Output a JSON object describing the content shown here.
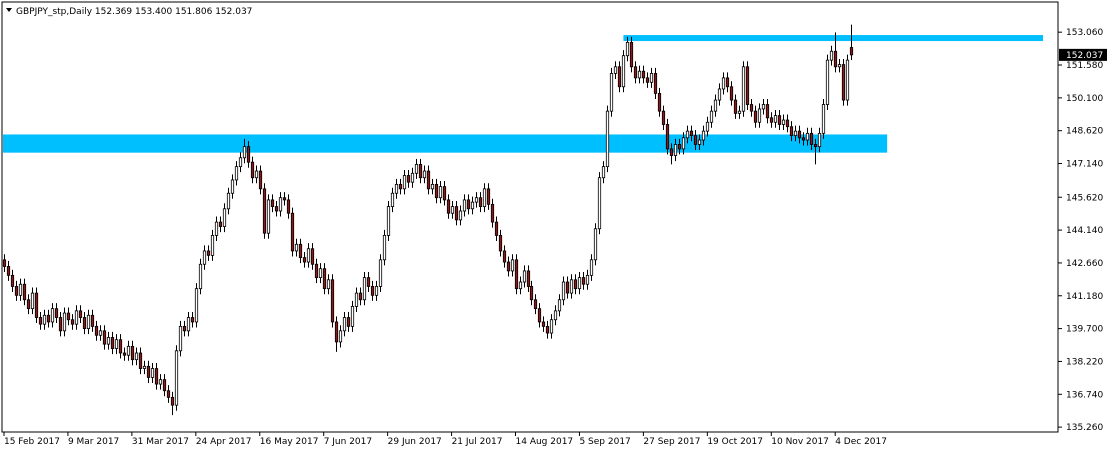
{
  "chart_data": {
    "type": "candlestick",
    "title": "GBPJPY_stp,Daily",
    "ohlc_labels": [
      "152.369",
      "153.400",
      "151.806",
      "152.037"
    ],
    "bull_color": "#ffffff",
    "bear_color": "#8b1a1a",
    "outline_color": "#000000",
    "zone_color": "#00bfff",
    "ylim": [
      135.04,
      154.42
    ],
    "xlim": [
      -0.5,
      263.75
    ],
    "yticks": [
      {
        "value": 153.06,
        "label": "153.060"
      },
      {
        "value": 151.58,
        "label": "151.580"
      },
      {
        "value": 150.1,
        "label": "150.100"
      },
      {
        "value": 148.62,
        "label": "148.620"
      },
      {
        "value": 147.14,
        "label": "147.140"
      },
      {
        "value": 145.62,
        "label": "145.620"
      },
      {
        "value": 144.14,
        "label": "144.140"
      },
      {
        "value": 142.66,
        "label": "142.660"
      },
      {
        "value": 141.18,
        "label": "141.180"
      },
      {
        "value": 139.7,
        "label": "139.700"
      },
      {
        "value": 138.22,
        "label": "138.220"
      },
      {
        "value": 136.74,
        "label": "136.740"
      },
      {
        "value": 135.26,
        "label": "135.260"
      }
    ],
    "xticks": [
      {
        "value": 0,
        "label": "15 Feb 2017"
      },
      {
        "value": 16,
        "label": "9 Mar 2017"
      },
      {
        "value": 32,
        "label": "31 Mar 2017"
      },
      {
        "value": 48,
        "label": "24 Apr 2017"
      },
      {
        "value": 64,
        "label": "16 May 2017"
      },
      {
        "value": 80,
        "label": "7 Jun 2017"
      },
      {
        "value": 96,
        "label": "29 Jun 2017"
      },
      {
        "value": 112,
        "label": "21 Jul 2017"
      },
      {
        "value": 128,
        "label": "14 Aug 2017"
      },
      {
        "value": 144,
        "label": "5 Sep 2017"
      },
      {
        "value": 160,
        "label": "27 Sep 2017"
      },
      {
        "value": 176,
        "label": "19 Oct 2017"
      },
      {
        "value": 192,
        "label": "10 Nov 2017"
      },
      {
        "value": 208,
        "label": "4 Dec 2017"
      }
    ],
    "zones": [
      {
        "from": -0.25,
        "to": 221,
        "top": 148.45,
        "bottom": 147.63
      },
      {
        "from": 155,
        "to": 260,
        "top": 152.93,
        "bottom": 152.66
      }
    ],
    "ohlc": [
      [
        142.8,
        143.05,
        142.25,
        142.5
      ],
      [
        142.5,
        142.75,
        141.85,
        142.1
      ],
      [
        142.1,
        142.35,
        141.35,
        141.6
      ],
      [
        141.6,
        141.85,
        140.95,
        141.2
      ],
      [
        141.2,
        141.95,
        140.95,
        141.7
      ],
      [
        141.7,
        141.95,
        140.75,
        141.0
      ],
      [
        141.0,
        141.25,
        140.35,
        140.6
      ],
      [
        140.6,
        141.55,
        140.35,
        141.3
      ],
      [
        141.3,
        141.55,
        139.95,
        140.2
      ],
      [
        140.2,
        140.45,
        139.65,
        139.9
      ],
      [
        139.9,
        140.55,
        139.65,
        140.3
      ],
      [
        140.3,
        140.55,
        139.75,
        140.0
      ],
      [
        140.0,
        140.85,
        139.75,
        140.6
      ],
      [
        140.6,
        140.85,
        139.95,
        140.2
      ],
      [
        140.2,
        140.45,
        139.35,
        139.6
      ],
      [
        139.6,
        140.65,
        139.35,
        140.4
      ],
      [
        140.4,
        140.65,
        139.85,
        140.1
      ],
      [
        140.1,
        140.35,
        139.65,
        139.9
      ],
      [
        139.9,
        140.75,
        139.65,
        140.5
      ],
      [
        140.5,
        140.75,
        139.95,
        140.2
      ],
      [
        140.2,
        140.45,
        139.45,
        139.7
      ],
      [
        139.7,
        140.55,
        139.45,
        140.3
      ],
      [
        140.3,
        140.55,
        139.55,
        139.8
      ],
      [
        139.8,
        140.05,
        139.15,
        139.4
      ],
      [
        139.4,
        139.85,
        139.15,
        139.6
      ],
      [
        139.6,
        139.85,
        138.75,
        139.0
      ],
      [
        139.0,
        139.55,
        138.75,
        139.3
      ],
      [
        139.3,
        139.55,
        138.55,
        138.8
      ],
      [
        138.8,
        139.45,
        138.55,
        139.2
      ],
      [
        139.2,
        139.45,
        138.35,
        138.6
      ],
      [
        138.6,
        138.85,
        138.25,
        138.5
      ],
      [
        138.5,
        139.15,
        138.25,
        138.9
      ],
      [
        138.9,
        139.15,
        138.05,
        138.3
      ],
      [
        138.3,
        138.85,
        138.05,
        138.6
      ],
      [
        138.6,
        138.85,
        137.65,
        137.9
      ],
      [
        137.9,
        138.25,
        137.65,
        138.0
      ],
      [
        138.0,
        138.25,
        137.25,
        137.5
      ],
      [
        137.5,
        138.15,
        137.25,
        137.9
      ],
      [
        137.9,
        138.15,
        136.95,
        137.2
      ],
      [
        137.2,
        137.65,
        136.95,
        137.4
      ],
      [
        137.4,
        137.65,
        136.65,
        136.9
      ],
      [
        136.9,
        137.15,
        136.35,
        136.6
      ],
      [
        136.6,
        136.85,
        135.8,
        136.25
      ],
      [
        136.25,
        138.95,
        136.0,
        138.7
      ],
      [
        138.7,
        140.05,
        138.45,
        139.8
      ],
      [
        139.8,
        140.05,
        139.35,
        139.6
      ],
      [
        139.6,
        140.45,
        139.35,
        140.2
      ],
      [
        140.2,
        140.45,
        139.75,
        140.0
      ],
      [
        140.0,
        141.75,
        139.75,
        141.5
      ],
      [
        141.5,
        142.85,
        141.25,
        142.6
      ],
      [
        142.6,
        143.45,
        142.35,
        143.2
      ],
      [
        143.2,
        143.45,
        142.75,
        143.0
      ],
      [
        143.0,
        144.15,
        142.75,
        143.9
      ],
      [
        143.9,
        144.75,
        143.65,
        144.5
      ],
      [
        144.5,
        144.75,
        144.05,
        144.3
      ],
      [
        144.3,
        145.35,
        144.05,
        145.1
      ],
      [
        145.1,
        146.05,
        144.85,
        145.8
      ],
      [
        145.8,
        146.65,
        145.55,
        146.4
      ],
      [
        146.4,
        147.25,
        146.15,
        147.0
      ],
      [
        147.0,
        147.65,
        146.75,
        147.4
      ],
      [
        147.4,
        148.25,
        147.15,
        147.9
      ],
      [
        147.9,
        148.15,
        146.95,
        147.2
      ],
      [
        147.2,
        147.45,
        146.25,
        146.5
      ],
      [
        146.5,
        147.05,
        146.25,
        146.8
      ],
      [
        146.8,
        147.05,
        145.75,
        146.0
      ],
      [
        146.0,
        146.25,
        143.75,
        144.0
      ],
      [
        144.0,
        145.75,
        143.75,
        145.5
      ],
      [
        145.5,
        145.75,
        144.95,
        145.2
      ],
      [
        145.2,
        145.45,
        144.75,
        145.0
      ],
      [
        145.0,
        145.85,
        144.75,
        145.6
      ],
      [
        145.6,
        145.85,
        145.25,
        145.5
      ],
      [
        145.5,
        145.75,
        144.65,
        144.9
      ],
      [
        144.9,
        145.15,
        142.95,
        143.2
      ],
      [
        143.2,
        143.75,
        142.95,
        143.5
      ],
      [
        143.5,
        143.75,
        142.65,
        142.9
      ],
      [
        142.9,
        143.15,
        142.45,
        142.7
      ],
      [
        142.7,
        143.55,
        142.45,
        143.3
      ],
      [
        143.3,
        143.55,
        142.35,
        142.6
      ],
      [
        142.6,
        142.85,
        141.75,
        142.0
      ],
      [
        142.0,
        142.65,
        141.75,
        142.4
      ],
      [
        142.4,
        142.65,
        141.25,
        141.5
      ],
      [
        141.5,
        142.15,
        141.25,
        141.9
      ],
      [
        141.9,
        142.15,
        139.75,
        140.0
      ],
      [
        140.0,
        140.25,
        138.65,
        139.1
      ],
      [
        139.1,
        139.85,
        138.85,
        139.6
      ],
      [
        139.6,
        140.45,
        139.35,
        140.2
      ],
      [
        140.2,
        140.45,
        139.55,
        139.8
      ],
      [
        139.8,
        140.95,
        139.55,
        140.7
      ],
      [
        140.7,
        141.55,
        140.45,
        141.3
      ],
      [
        141.3,
        141.55,
        140.75,
        141.0
      ],
      [
        141.0,
        142.25,
        140.75,
        142.0
      ],
      [
        142.0,
        142.25,
        141.35,
        141.6
      ],
      [
        141.6,
        141.85,
        140.95,
        141.2
      ],
      [
        141.2,
        141.85,
        140.95,
        141.6
      ],
      [
        141.6,
        143.05,
        141.35,
        142.8
      ],
      [
        142.8,
        144.15,
        142.55,
        143.9
      ],
      [
        143.9,
        145.45,
        143.65,
        145.2
      ],
      [
        145.2,
        146.05,
        144.95,
        145.8
      ],
      [
        145.8,
        146.45,
        145.55,
        146.2
      ],
      [
        146.2,
        146.45,
        145.75,
        146.0
      ],
      [
        146.0,
        146.85,
        145.75,
        146.6
      ],
      [
        146.6,
        146.85,
        146.05,
        146.3
      ],
      [
        146.3,
        146.95,
        146.05,
        146.7
      ],
      [
        146.7,
        147.35,
        146.45,
        147.1
      ],
      [
        147.1,
        147.35,
        146.25,
        146.5
      ],
      [
        146.5,
        147.05,
        146.25,
        146.8
      ],
      [
        146.8,
        147.05,
        145.75,
        146.0
      ],
      [
        146.0,
        146.45,
        145.75,
        146.2
      ],
      [
        146.2,
        146.45,
        145.35,
        145.6
      ],
      [
        145.6,
        146.35,
        145.35,
        146.1
      ],
      [
        146.1,
        146.35,
        145.25,
        145.5
      ],
      [
        145.5,
        145.75,
        144.65,
        144.9
      ],
      [
        144.9,
        145.45,
        144.65,
        145.2
      ],
      [
        145.2,
        145.45,
        144.35,
        144.6
      ],
      [
        144.6,
        145.25,
        144.35,
        145.0
      ],
      [
        145.0,
        145.75,
        144.75,
        145.5
      ],
      [
        145.5,
        145.75,
        144.85,
        145.1
      ],
      [
        145.1,
        145.65,
        144.85,
        145.4
      ],
      [
        145.4,
        145.85,
        145.15,
        145.6
      ],
      [
        145.6,
        145.85,
        144.95,
        145.2
      ],
      [
        145.2,
        146.25,
        144.95,
        146.0
      ],
      [
        146.0,
        146.25,
        145.05,
        145.3
      ],
      [
        145.3,
        145.55,
        144.25,
        144.5
      ],
      [
        144.5,
        144.75,
        143.65,
        143.9
      ],
      [
        143.9,
        144.15,
        142.95,
        143.2
      ],
      [
        143.2,
        143.45,
        142.45,
        142.7
      ],
      [
        142.7,
        142.95,
        142.05,
        142.3
      ],
      [
        142.3,
        143.05,
        142.05,
        142.8
      ],
      [
        142.8,
        143.05,
        141.25,
        141.5
      ],
      [
        141.5,
        142.05,
        141.25,
        141.8
      ],
      [
        141.8,
        142.55,
        141.55,
        142.3
      ],
      [
        142.3,
        142.55,
        141.35,
        141.6
      ],
      [
        141.6,
        141.85,
        140.75,
        141.0
      ],
      [
        141.0,
        141.25,
        140.35,
        140.6
      ],
      [
        140.6,
        140.85,
        139.75,
        140.0
      ],
      [
        140.0,
        140.25,
        139.55,
        139.8
      ],
      [
        139.8,
        140.05,
        139.25,
        139.5
      ],
      [
        139.5,
        140.35,
        139.25,
        140.1
      ],
      [
        140.1,
        140.75,
        139.85,
        140.5
      ],
      [
        140.5,
        141.25,
        140.25,
        141.0
      ],
      [
        141.0,
        142.05,
        140.75,
        141.8
      ],
      [
        141.8,
        142.05,
        141.05,
        141.3
      ],
      [
        141.3,
        142.15,
        141.05,
        141.9
      ],
      [
        141.9,
        142.15,
        141.25,
        141.5
      ],
      [
        141.5,
        142.25,
        141.25,
        142.0
      ],
      [
        142.0,
        142.25,
        141.45,
        141.7
      ],
      [
        141.7,
        142.35,
        141.45,
        142.1
      ],
      [
        142.1,
        143.05,
        141.85,
        142.8
      ],
      [
        142.8,
        144.45,
        142.55,
        144.2
      ],
      [
        144.2,
        146.75,
        143.95,
        146.5
      ],
      [
        146.5,
        147.25,
        146.25,
        147.0
      ],
      [
        147.0,
        149.75,
        146.75,
        149.5
      ],
      [
        149.5,
        151.45,
        149.25,
        151.2
      ],
      [
        151.2,
        151.75,
        150.95,
        151.5
      ],
      [
        151.5,
        151.75,
        150.35,
        150.6
      ],
      [
        150.6,
        152.25,
        150.35,
        152.0
      ],
      [
        152.0,
        152.85,
        151.75,
        152.6
      ],
      [
        152.6,
        152.85,
        151.25,
        151.5
      ],
      [
        151.5,
        151.75,
        150.75,
        151.0
      ],
      [
        151.0,
        151.55,
        150.75,
        151.3
      ],
      [
        151.3,
        151.55,
        150.75,
        151.0
      ],
      [
        151.0,
        151.25,
        150.55,
        150.8
      ],
      [
        150.8,
        151.45,
        150.55,
        151.2
      ],
      [
        151.2,
        151.45,
        150.05,
        150.3
      ],
      [
        150.3,
        150.55,
        149.25,
        149.5
      ],
      [
        149.5,
        149.75,
        148.65,
        148.9
      ],
      [
        148.9,
        149.15,
        147.55,
        147.8
      ],
      [
        147.8,
        148.05,
        147.1,
        147.5
      ],
      [
        147.5,
        148.25,
        147.25,
        148.0
      ],
      [
        148.0,
        148.25,
        147.55,
        147.8
      ],
      [
        147.8,
        148.55,
        147.55,
        148.3
      ],
      [
        148.3,
        148.85,
        148.05,
        148.6
      ],
      [
        148.6,
        148.85,
        148.15,
        148.4
      ],
      [
        148.4,
        148.65,
        147.75,
        148.0
      ],
      [
        148.0,
        148.45,
        147.75,
        148.2
      ],
      [
        148.2,
        148.85,
        147.95,
        148.6
      ],
      [
        148.6,
        149.25,
        148.35,
        149.0
      ],
      [
        149.0,
        149.75,
        148.75,
        149.5
      ],
      [
        149.5,
        150.25,
        149.25,
        150.0
      ],
      [
        150.0,
        150.75,
        149.75,
        150.5
      ],
      [
        150.5,
        151.25,
        150.25,
        151.0
      ],
      [
        151.0,
        151.25,
        150.35,
        150.6
      ],
      [
        150.6,
        150.85,
        149.75,
        150.0
      ],
      [
        150.0,
        150.25,
        149.15,
        149.4
      ],
      [
        149.4,
        149.75,
        149.15,
        149.5
      ],
      [
        149.5,
        151.75,
        149.25,
        151.5
      ],
      [
        151.5,
        151.75,
        149.55,
        149.8
      ],
      [
        149.8,
        150.05,
        149.25,
        149.5
      ],
      [
        149.5,
        149.75,
        148.75,
        149.0
      ],
      [
        149.0,
        149.85,
        148.75,
        149.6
      ],
      [
        149.6,
        150.05,
        149.35,
        149.8
      ],
      [
        149.8,
        150.05,
        148.95,
        149.2
      ],
      [
        149.2,
        149.45,
        148.75,
        149.0
      ],
      [
        149.0,
        149.55,
        148.75,
        149.3
      ],
      [
        149.3,
        149.55,
        148.65,
        148.9
      ],
      [
        148.9,
        149.35,
        148.65,
        149.1
      ],
      [
        149.1,
        149.35,
        148.55,
        148.8
      ],
      [
        148.8,
        149.05,
        148.15,
        148.4
      ],
      [
        148.4,
        148.85,
        148.15,
        148.6
      ],
      [
        148.6,
        148.85,
        148.05,
        148.3
      ],
      [
        148.3,
        148.55,
        147.95,
        148.2
      ],
      [
        148.2,
        148.75,
        147.95,
        148.5
      ],
      [
        148.5,
        148.75,
        147.75,
        148.0
      ],
      [
        148.0,
        148.25,
        147.1,
        147.9
      ],
      [
        147.9,
        148.75,
        147.65,
        148.5
      ],
      [
        148.5,
        150.05,
        148.25,
        149.8
      ],
      [
        149.8,
        152.05,
        149.55,
        151.8
      ],
      [
        151.8,
        152.45,
        151.55,
        152.2
      ],
      [
        152.2,
        153.05,
        151.25,
        151.5
      ],
      [
        151.5,
        151.85,
        151.25,
        151.6
      ],
      [
        151.6,
        151.85,
        149.75,
        150.0
      ],
      [
        150.0,
        152.05,
        149.75,
        151.8
      ],
      [
        152.369,
        153.4,
        151.806,
        152.037
      ]
    ]
  }
}
